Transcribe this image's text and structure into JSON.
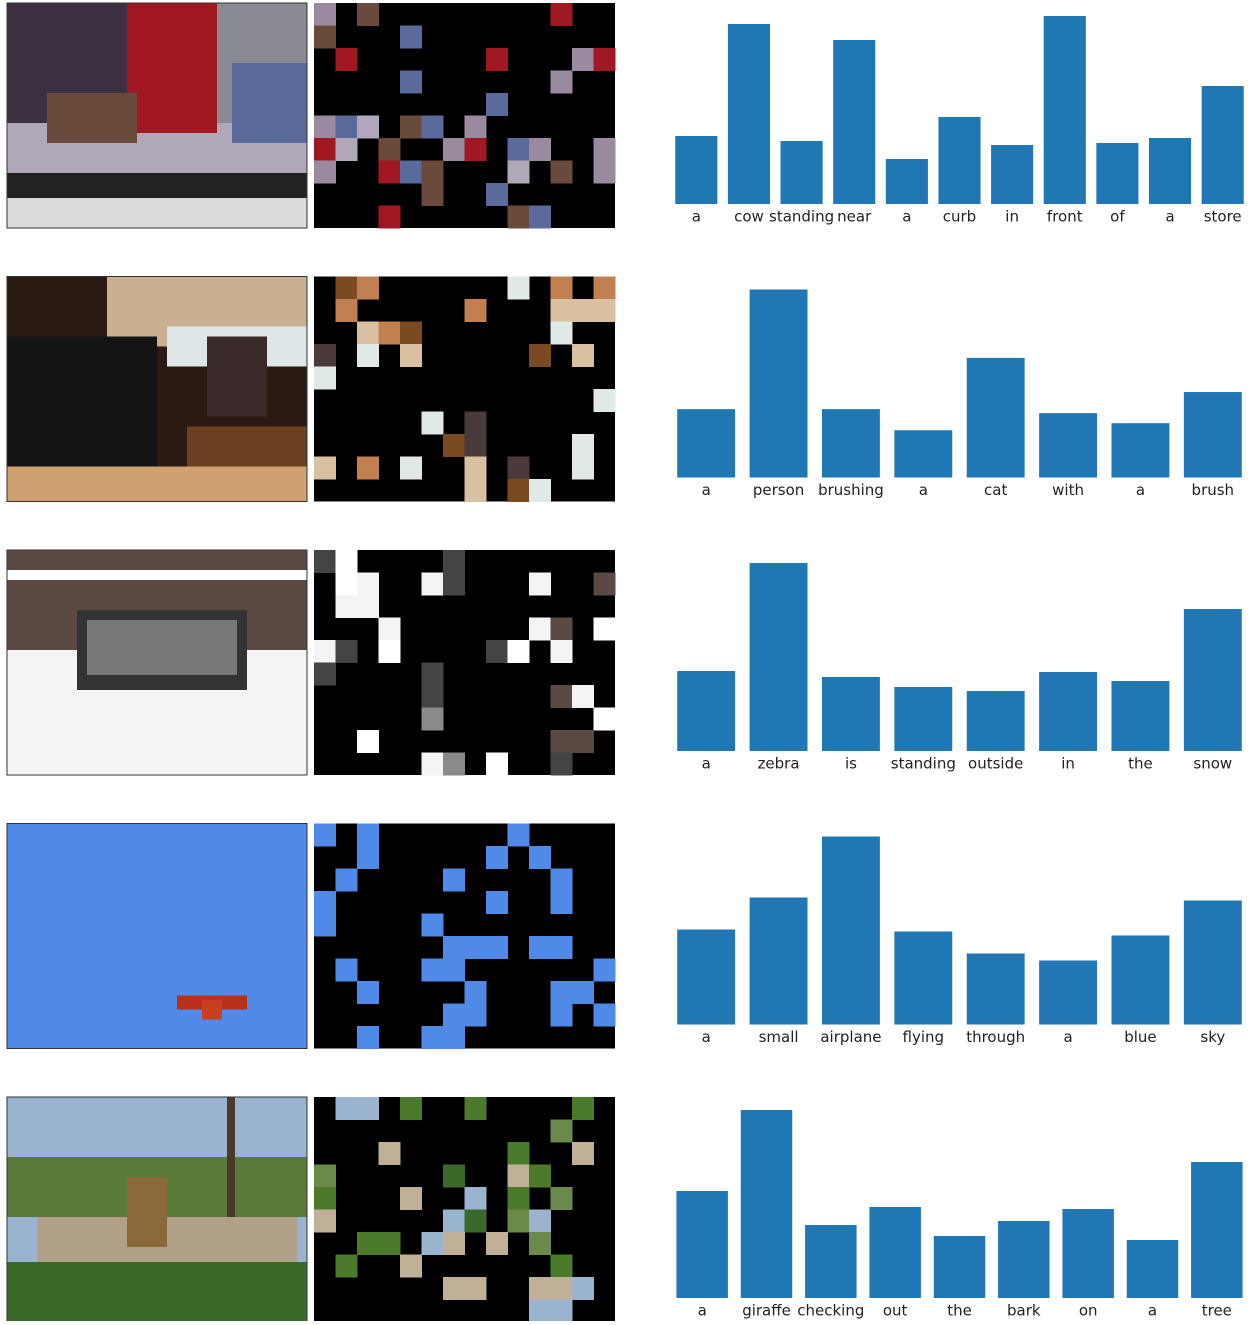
{
  "chart_data": [
    {
      "type": "bar",
      "color": "#1f77b4",
      "categories": [
        "a",
        "cow",
        "standing",
        "near",
        "a",
        "curb",
        "in",
        "front",
        "of",
        "a",
        "store"
      ],
      "values": [
        68,
        180,
        63,
        164,
        45,
        87,
        59,
        188,
        61,
        66,
        118
      ]
    },
    {
      "type": "bar",
      "color": "#1f77b4",
      "categories": [
        "a",
        "person",
        "brushing",
        "a",
        "cat",
        "with",
        "a",
        "brush"
      ],
      "values": [
        68,
        187,
        68,
        47,
        119,
        64,
        54,
        85
      ]
    },
    {
      "type": "bar",
      "color": "#1f77b4",
      "categories": [
        "a",
        "zebra",
        "is",
        "standing",
        "outside",
        "in",
        "the",
        "snow"
      ],
      "values": [
        80,
        188,
        74,
        64,
        60,
        79,
        70,
        142
      ]
    },
    {
      "type": "bar",
      "color": "#1f77b4",
      "categories": [
        "a",
        "small",
        "airplane",
        "flying",
        "through",
        "a",
        "blue",
        "sky"
      ],
      "values": [
        95,
        127,
        188,
        93,
        71,
        64,
        89,
        124
      ]
    },
    {
      "type": "bar",
      "color": "#1f77b4",
      "categories": [
        "a",
        "giraffe",
        "checking",
        "out",
        "the",
        "bark",
        "on",
        "a",
        "tree"
      ],
      "values": [
        107,
        188,
        73,
        91,
        62,
        77,
        89,
        58,
        136
      ]
    }
  ]
}
